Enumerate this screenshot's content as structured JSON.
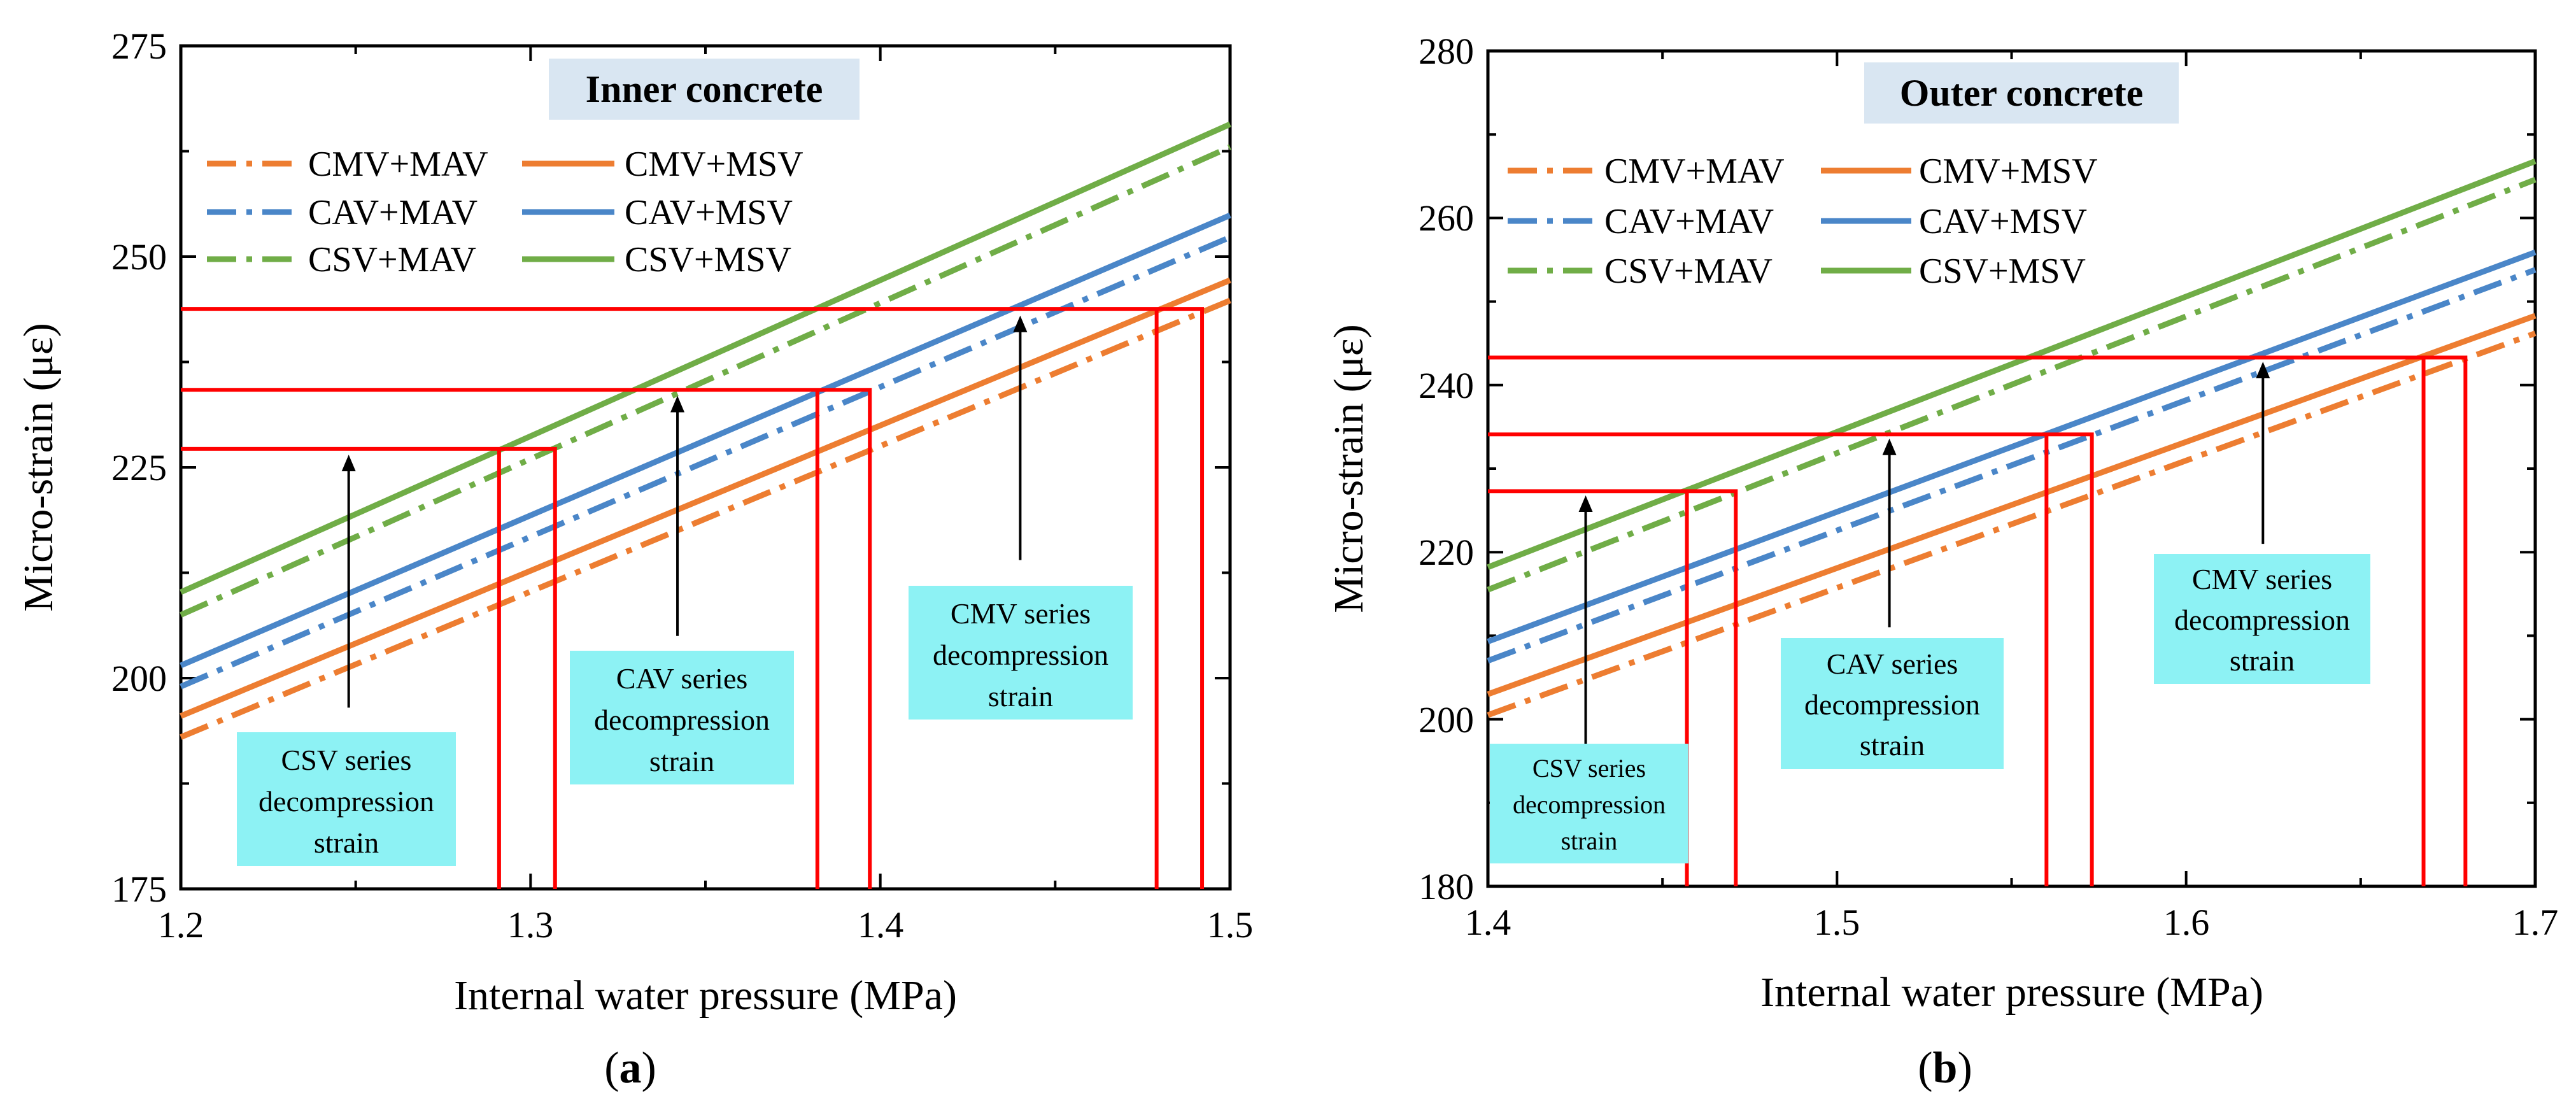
{
  "chart_data": [
    {
      "type": "line",
      "panel_label": "a",
      "title": "Inner concrete",
      "xlabel": "Internal water pressure (MPa)",
      "ylabel": "Micro-strain (με)",
      "xlim": [
        1.2,
        1.5
      ],
      "ylim": [
        175,
        275
      ],
      "xticks": [
        "1.2",
        "1.3",
        "1.4",
        "1.5"
      ],
      "yticks": [
        "175",
        "200",
        "225",
        "250",
        "275"
      ],
      "legend_position": "top-left",
      "series": [
        {
          "name": "CMV+MAV",
          "dash": "dashdot",
          "color": "#ED7D31",
          "x": [
            1.2,
            1.5
          ],
          "y": [
            193.0,
            244.8
          ]
        },
        {
          "name": "CMV+MSV",
          "dash": "solid",
          "color": "#ED7D31",
          "x": [
            1.2,
            1.5
          ],
          "y": [
            195.5,
            247.2
          ]
        },
        {
          "name": "CAV+MAV",
          "dash": "dashdot",
          "color": "#4A86C8",
          "x": [
            1.2,
            1.5
          ],
          "y": [
            199.0,
            252.3
          ]
        },
        {
          "name": "CAV+MSV",
          "dash": "solid",
          "color": "#4A86C8",
          "x": [
            1.2,
            1.5
          ],
          "y": [
            201.5,
            254.9
          ]
        },
        {
          "name": "CSV+MAV",
          "dash": "dashdot",
          "color": "#70AD47",
          "x": [
            1.2,
            1.5
          ],
          "y": [
            207.5,
            263.0
          ]
        },
        {
          "name": "CSV+MSV",
          "dash": "solid",
          "color": "#70AD47",
          "x": [
            1.2,
            1.5
          ],
          "y": [
            210.2,
            265.7
          ]
        }
      ],
      "decompression": [
        {
          "label": "CSV series decompression strain",
          "strain": 227.2,
          "x_left": 1.291,
          "x_right": 1.307,
          "arrow_x": 1.248,
          "arrow_from": 196.5,
          "arrow_to": 226.5
        },
        {
          "label": "CAV series decompression strain",
          "strain": 234.2,
          "x_left": 1.382,
          "x_right": 1.397,
          "arrow_x": 1.342,
          "arrow_from": 205.0,
          "arrow_to": 233.5
        },
        {
          "label": "CMV series decompression strain",
          "strain": 243.8,
          "x_left": 1.479,
          "x_right": 1.492,
          "arrow_x": 1.44,
          "arrow_from": 214.0,
          "arrow_to": 243.0
        }
      ],
      "annotations": [
        {
          "lines": [
            "CSV series",
            "decompression",
            "strain"
          ]
        },
        {
          "lines": [
            "CAV series",
            "decompression",
            "strain"
          ]
        },
        {
          "lines": [
            "CMV series",
            "decompression",
            "strain"
          ]
        }
      ]
    },
    {
      "type": "line",
      "panel_label": "b",
      "title": "Outer concrete",
      "xlabel": "Internal water pressure (MPa)",
      "ylabel": "Micro-strain (με)",
      "xlim": [
        1.4,
        1.7
      ],
      "ylim": [
        180,
        280
      ],
      "xticks": [
        "1.4",
        "1.5",
        "1.6",
        "1.7"
      ],
      "yticks": [
        "180",
        "200",
        "220",
        "240",
        "260",
        "280"
      ],
      "legend_position": "top-left",
      "series": [
        {
          "name": "CMV+MAV",
          "dash": "dashdot",
          "color": "#ED7D31",
          "x": [
            1.4,
            1.7
          ],
          "y": [
            200.5,
            246.2
          ]
        },
        {
          "name": "CMV+MSV",
          "dash": "solid",
          "color": "#ED7D31",
          "x": [
            1.4,
            1.7
          ],
          "y": [
            203.0,
            248.3
          ]
        },
        {
          "name": "CAV+MAV",
          "dash": "dashdot",
          "color": "#4A86C8",
          "x": [
            1.4,
            1.7
          ],
          "y": [
            207.0,
            253.8
          ]
        },
        {
          "name": "CAV+MSV",
          "dash": "solid",
          "color": "#4A86C8",
          "x": [
            1.4,
            1.7
          ],
          "y": [
            209.3,
            255.9
          ]
        },
        {
          "name": "CSV+MAV",
          "dash": "dashdot",
          "color": "#70AD47",
          "x": [
            1.4,
            1.7
          ],
          "y": [
            215.5,
            264.6
          ]
        },
        {
          "name": "CSV+MSV",
          "dash": "solid",
          "color": "#70AD47",
          "x": [
            1.4,
            1.7
          ],
          "y": [
            218.2,
            266.8
          ]
        }
      ],
      "decompression": [
        {
          "label": "CSV series decompression strain",
          "strain": 227.3,
          "x_left": 1.457,
          "x_right": 1.471,
          "arrow_x": 1.428,
          "arrow_from": 197.0,
          "arrow_to": 226.8
        },
        {
          "label": "CAV series decompression strain",
          "strain": 234.1,
          "x_left": 1.56,
          "x_right": 1.573,
          "arrow_x": 1.515,
          "arrow_from": 211.0,
          "arrow_to": 233.6
        },
        {
          "label": "CMV series decompression strain",
          "strain": 243.3,
          "x_left": 1.668,
          "x_right": 1.68,
          "arrow_x": 1.622,
          "arrow_from": 221.0,
          "arrow_to": 242.8
        }
      ],
      "annotations": [
        {
          "lines": [
            "CSV series",
            "decompression",
            "strain"
          ]
        },
        {
          "lines": [
            "CAV series",
            "decompression",
            "strain"
          ]
        },
        {
          "lines": [
            "CMV series",
            "decompression",
            "strain"
          ]
        }
      ]
    }
  ],
  "colors": {
    "decompression_line": "#FF0000",
    "annotation_box": "#8DF2F4",
    "title_box": "#D9E6F2"
  }
}
